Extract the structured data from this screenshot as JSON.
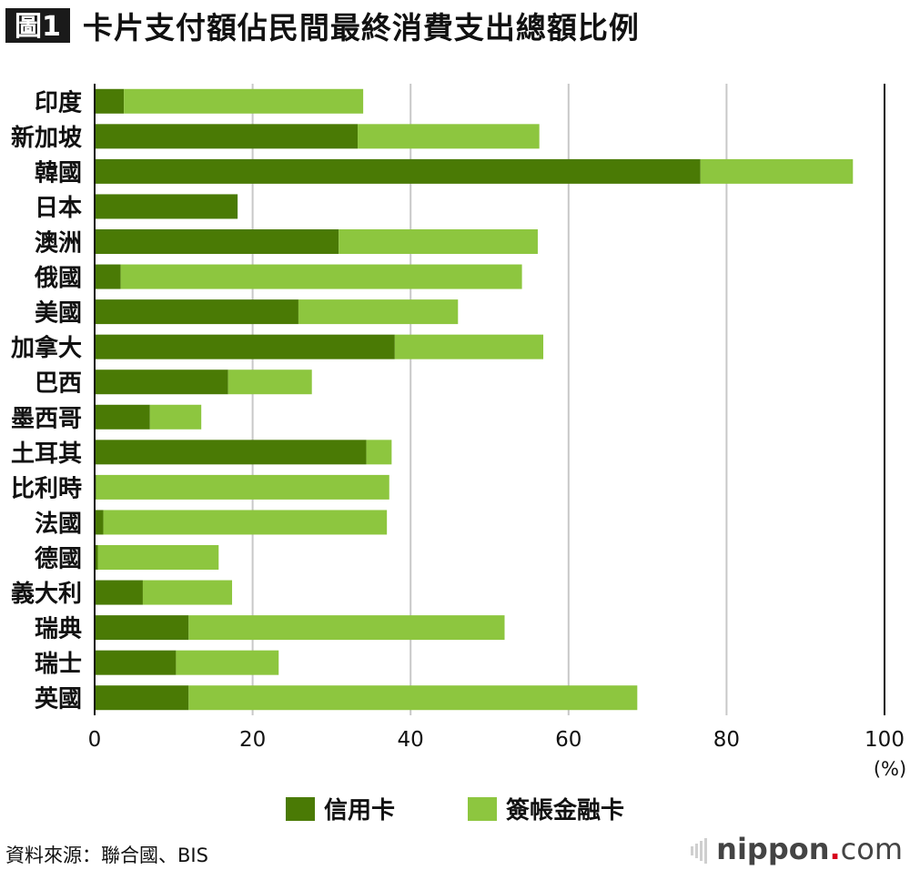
{
  "badge": "圖1",
  "title": "卡片支付額佔民間最終消費支出總額比例",
  "chart_data": {
    "type": "bar",
    "orientation": "horizontal",
    "stacked": true,
    "categories": [
      "印度",
      "新加坡",
      "韓國",
      "日本",
      "澳洲",
      "俄國",
      "美國",
      "加拿大",
      "巴西",
      "墨西哥",
      "土耳其",
      "比利時",
      "法國",
      "德國",
      "義大利",
      "瑞典",
      "瑞士",
      "英國"
    ],
    "series": [
      {
        "name": "信用卡",
        "color": "#4a7a05",
        "values": [
          3.7,
          33.3,
          76.7,
          18.1,
          30.9,
          3.3,
          25.8,
          38.0,
          16.9,
          7.0,
          34.4,
          0.2,
          1.1,
          0.4,
          6.1,
          11.9,
          10.3,
          11.9
        ]
      },
      {
        "name": "簽帳金融卡",
        "color": "#8dc63f",
        "values": [
          30.3,
          23.0,
          19.3,
          0.0,
          25.2,
          50.8,
          20.2,
          18.8,
          10.6,
          6.5,
          3.2,
          37.1,
          35.9,
          15.3,
          11.3,
          40.0,
          13.0,
          56.8
        ]
      }
    ],
    "xlim": [
      0,
      100
    ],
    "xticks": [
      0,
      20,
      40,
      60,
      80,
      100
    ],
    "xunit": "(%)",
    "grid": true,
    "legend_position": "bottom"
  },
  "source": "資料來源：聯合國、BIS",
  "logo": {
    "name": "nippon",
    "dot": ".",
    "suffix": "com"
  }
}
